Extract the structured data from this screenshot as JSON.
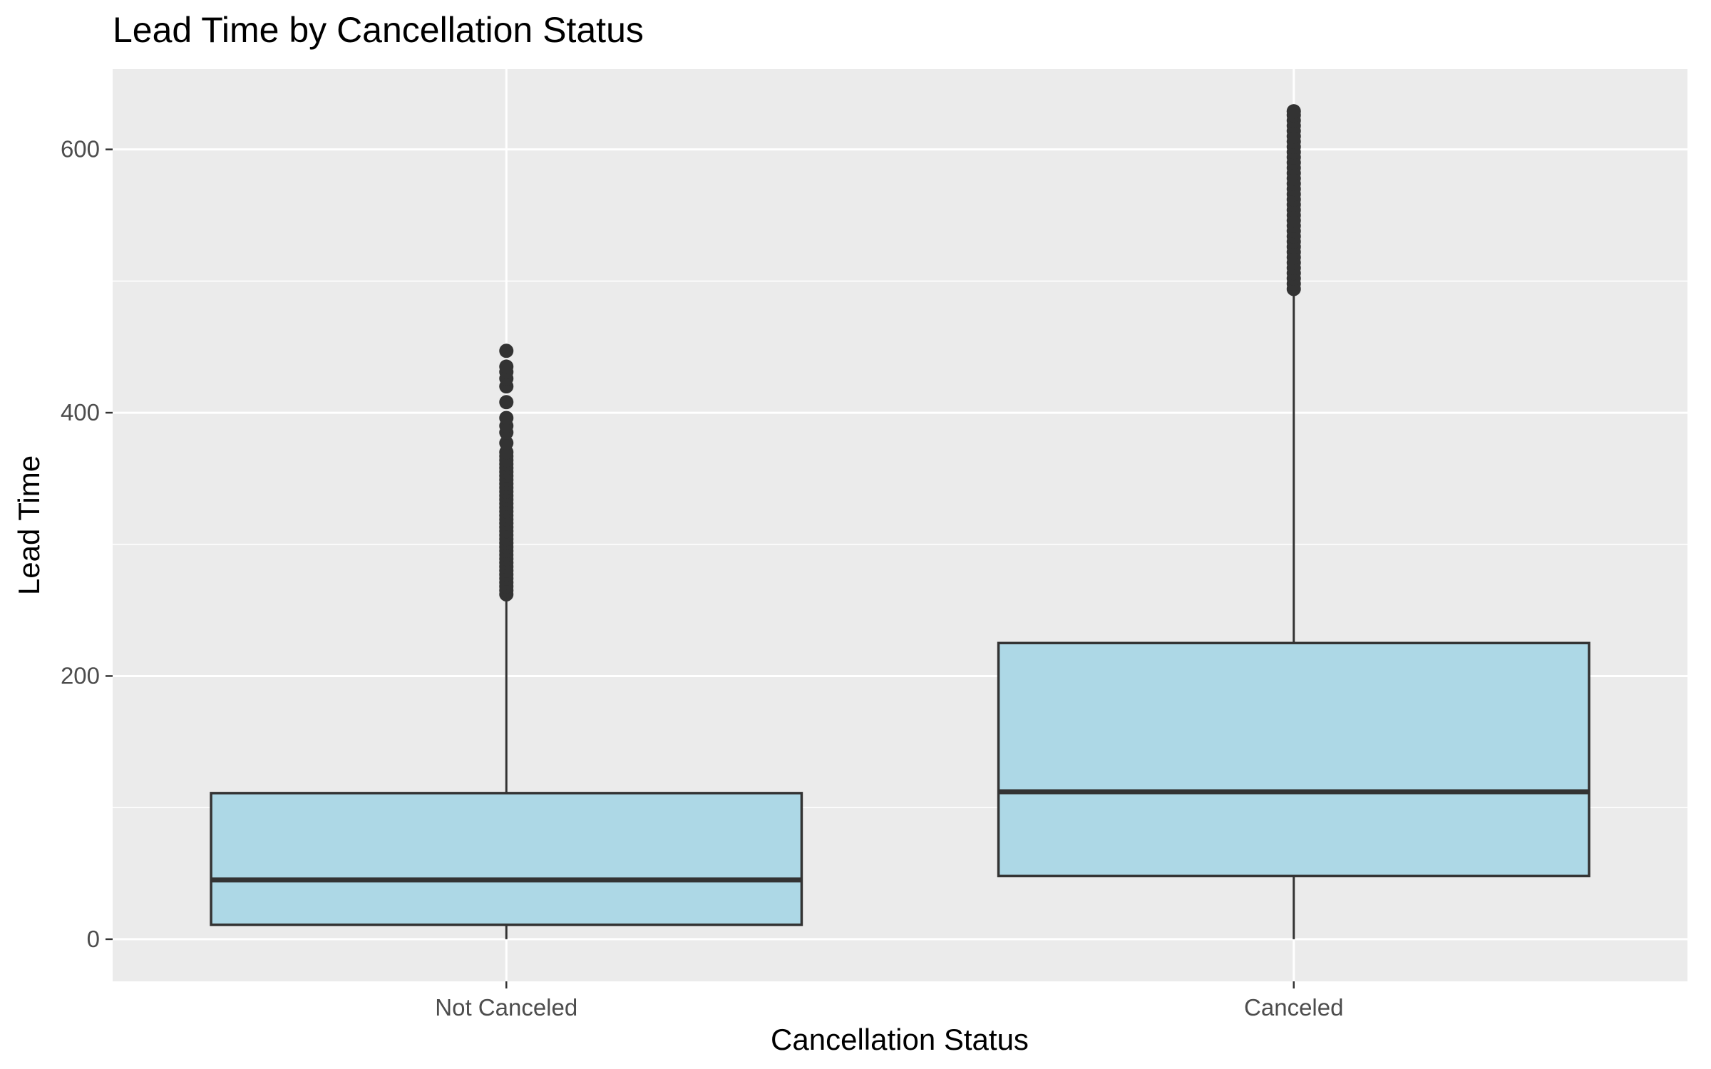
{
  "chart_data": {
    "type": "boxplot",
    "title": "Lead Time by Cancellation Status",
    "xlabel": "Cancellation Status",
    "ylabel": "Lead Time",
    "categories": [
      "Not Canceled",
      "Canceled"
    ],
    "ylim": [
      -32,
      661
    ],
    "yticks": [
      0,
      200,
      400,
      600
    ],
    "grid": true,
    "box_fill": "#ADD8E6",
    "box_stroke": "#333333",
    "panel_background": "#EBEBEB",
    "gridline_color": "#FFFFFF",
    "boxes": [
      {
        "category": "Not Canceled",
        "min": 0,
        "q1": 11,
        "median": 45,
        "q3": 111,
        "max": 260,
        "outliers": [
          262,
          265,
          268,
          271,
          274,
          277,
          280,
          283,
          286,
          289,
          292,
          295,
          298,
          301,
          304,
          307,
          310,
          313,
          316,
          319,
          322,
          325,
          328,
          331,
          334,
          337,
          340,
          343,
          346,
          349,
          352,
          355,
          358,
          361,
          364,
          367,
          370,
          377,
          385,
          390,
          396,
          408,
          420,
          426,
          431,
          435,
          447
        ]
      },
      {
        "category": "Canceled",
        "min": 0,
        "q1": 48,
        "median": 112,
        "q3": 225,
        "max": 491,
        "outliers": [
          494,
          498,
          502,
          506,
          510,
          514,
          518,
          522,
          526,
          530,
          534,
          538,
          542,
          546,
          550,
          554,
          558,
          562,
          566,
          570,
          574,
          578,
          582,
          586,
          590,
          594,
          598,
          602,
          606,
          610,
          614,
          618,
          622,
          626,
          629
        ]
      }
    ]
  }
}
